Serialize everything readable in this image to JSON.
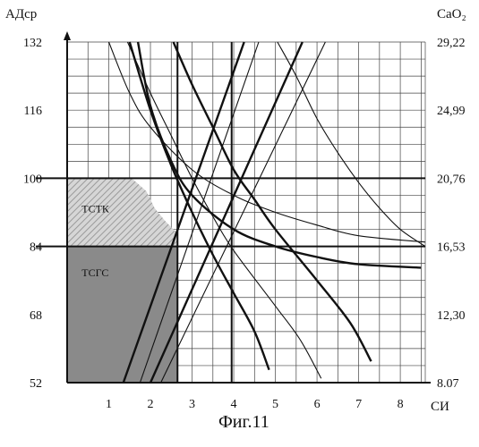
{
  "chart_data": {
    "type": "line",
    "caption": "Фиг.11",
    "left_axis_label": "АДср",
    "right_axis_label": "CaO₂",
    "xlabel": "СИ",
    "xlim": [
      0,
      8.6
    ],
    "ylim": [
      52,
      132
    ],
    "x_ticks": [
      "1",
      "2",
      "3",
      "4",
      "5",
      "6",
      "7",
      "8"
    ],
    "left_ticks": [
      {
        "value": 132,
        "label": "132"
      },
      {
        "value": 116,
        "label": "116"
      },
      {
        "value": 100,
        "label": "100"
      },
      {
        "value": 84,
        "label": "84"
      },
      {
        "value": 68,
        "label": "68"
      },
      {
        "value": 52,
        "label": "52"
      }
    ],
    "right_ticks": [
      {
        "value": 132,
        "label": "29,22"
      },
      {
        "value": 116,
        "label": "24,99"
      },
      {
        "value": 100,
        "label": "20,76"
      },
      {
        "value": 84,
        "label": "16,53"
      },
      {
        "value": 68,
        "label": "12,30"
      },
      {
        "value": 52,
        "label": "8.07"
      }
    ],
    "grid": true,
    "x_gridlines": [
      0.5,
      1,
      1.5,
      2,
      2.5,
      3,
      3.5,
      4,
      4.5,
      5,
      5.5,
      6,
      6.5,
      7,
      7.5,
      8,
      8.5
    ],
    "y_gridlines": [
      56,
      60,
      64,
      68,
      72,
      76,
      80,
      84,
      88,
      92,
      96,
      100,
      104,
      108,
      112,
      116,
      120,
      124,
      128
    ],
    "reference_lines": {
      "vertical": [
        2.65,
        3.95
      ],
      "horizontal": [
        100,
        84
      ]
    },
    "regions": [
      {
        "label": "ТСТК",
        "pattern": "hatched",
        "color": "#b8b8b8"
      },
      {
        "label": "ТСГС",
        "pattern": "solid",
        "color": "#8a8a8a"
      }
    ],
    "region_tstk_boundary": [
      [
        0,
        100
      ],
      [
        1.55,
        100
      ],
      [
        1.9,
        97
      ],
      [
        2.1,
        93
      ],
      [
        2.35,
        90
      ],
      [
        2.55,
        88
      ],
      [
        2.65,
        87
      ],
      [
        2.65,
        84
      ],
      [
        0,
        84
      ]
    ],
    "region_tsgs_boundary": [
      [
        0,
        84
      ],
      [
        2.65,
        84
      ],
      [
        2.65,
        52
      ],
      [
        0,
        52
      ]
    ],
    "series": [
      {
        "kind": "hyperbola",
        "weight": "bold",
        "points": [
          [
            1.7,
            132
          ],
          [
            2.0,
            117
          ],
          [
            2.5,
            104
          ],
          [
            3.0,
            96
          ],
          [
            4.0,
            88
          ],
          [
            5.0,
            84
          ],
          [
            6.0,
            81.5
          ],
          [
            7.0,
            79.8
          ],
          [
            8.5,
            79
          ]
        ]
      },
      {
        "kind": "hyperbola",
        "weight": "thin",
        "points": [
          [
            1.0,
            132
          ],
          [
            1.5,
            120
          ],
          [
            2.0,
            112
          ],
          [
            3.0,
            102
          ],
          [
            4.0,
            96
          ],
          [
            5.0,
            92
          ],
          [
            6.0,
            89
          ],
          [
            7.0,
            86.5
          ],
          [
            8.6,
            85
          ]
        ]
      },
      {
        "kind": "hyperbola",
        "weight": "bold",
        "points": [
          [
            2.55,
            132
          ],
          [
            3.0,
            122
          ],
          [
            3.5,
            112
          ],
          [
            4.0,
            102
          ],
          [
            4.5,
            95
          ],
          [
            5.0,
            88
          ],
          [
            6.0,
            76
          ],
          [
            6.8,
            66
          ],
          [
            7.3,
            57
          ]
        ]
      },
      {
        "kind": "hyperbola",
        "weight": "thin",
        "points": [
          [
            1.45,
            132
          ],
          [
            2.0,
            120
          ],
          [
            2.5,
            110
          ],
          [
            3.0,
            100
          ],
          [
            3.5,
            91
          ],
          [
            4.0,
            83
          ],
          [
            5.0,
            70
          ],
          [
            5.6,
            62
          ],
          [
            6.1,
            53
          ]
        ]
      },
      {
        "kind": "hyperbola",
        "weight": "bold",
        "points": [
          [
            1.5,
            132
          ],
          [
            2.0,
            116
          ],
          [
            2.5,
            103
          ],
          [
            3.0,
            92
          ],
          [
            3.5,
            82
          ],
          [
            4.0,
            73
          ],
          [
            4.5,
            64
          ],
          [
            4.85,
            55
          ]
        ]
      },
      {
        "kind": "hyperbola",
        "weight": "thin",
        "points": [
          [
            5.05,
            132
          ],
          [
            5.5,
            124
          ],
          [
            6.0,
            114
          ],
          [
            6.5,
            106
          ],
          [
            7.0,
            99
          ],
          [
            7.5,
            93
          ],
          [
            8.0,
            88
          ],
          [
            8.6,
            84
          ]
        ]
      },
      {
        "kind": "line",
        "weight": "bold",
        "points": [
          [
            1.35,
            52
          ],
          [
            4.25,
            132
          ]
        ]
      },
      {
        "kind": "line",
        "weight": "thin",
        "points": [
          [
            1.75,
            52
          ],
          [
            4.6,
            132
          ]
        ]
      },
      {
        "kind": "line",
        "weight": "bold",
        "points": [
          [
            2.0,
            52
          ],
          [
            5.65,
            132
          ]
        ]
      },
      {
        "kind": "line",
        "weight": "thin",
        "points": [
          [
            2.25,
            52
          ],
          [
            6.2,
            132
          ]
        ]
      }
    ]
  }
}
